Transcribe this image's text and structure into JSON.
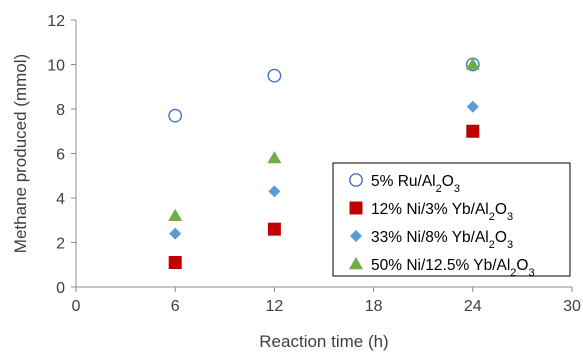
{
  "chart_data": {
    "type": "scatter",
    "xlabel": "Reaction time (h)",
    "ylabel": "Methane produced (mmol)",
    "xlim": [
      0,
      30
    ],
    "ylim": [
      0,
      12
    ],
    "xticks": [
      0,
      6,
      12,
      18,
      24,
      30
    ],
    "yticks": [
      0,
      2,
      4,
      6,
      8,
      10,
      12
    ],
    "grid": false,
    "legend_position": "bottom-right",
    "series": [
      {
        "name_parts": [
          "5% Ru/Al",
          "2",
          "O",
          "3",
          ""
        ],
        "marker": "circle-open",
        "color": "#4472C4",
        "x": [
          6,
          12,
          24
        ],
        "y": [
          7.7,
          9.5,
          10.0
        ]
      },
      {
        "name_parts": [
          "12% Ni/3% Yb/Al",
          "2",
          "O",
          "3",
          ""
        ],
        "marker": "square",
        "color": "#C00000",
        "x": [
          6,
          12,
          24
        ],
        "y": [
          1.1,
          2.6,
          7.0
        ]
      },
      {
        "name_parts": [
          "33% Ni/8% Yb/Al",
          "2",
          "O",
          "3",
          ""
        ],
        "marker": "diamond",
        "color": "#5B9BD5",
        "x": [
          6,
          12,
          24
        ],
        "y": [
          2.4,
          4.3,
          8.1
        ]
      },
      {
        "name_parts": [
          "50% Ni/12.5% Yb/Al",
          "2",
          "O",
          "3",
          ""
        ],
        "marker": "triangle",
        "color": "#70AD47",
        "x": [
          6,
          12,
          24
        ],
        "y": [
          3.2,
          5.8,
          10.0
        ]
      }
    ]
  }
}
